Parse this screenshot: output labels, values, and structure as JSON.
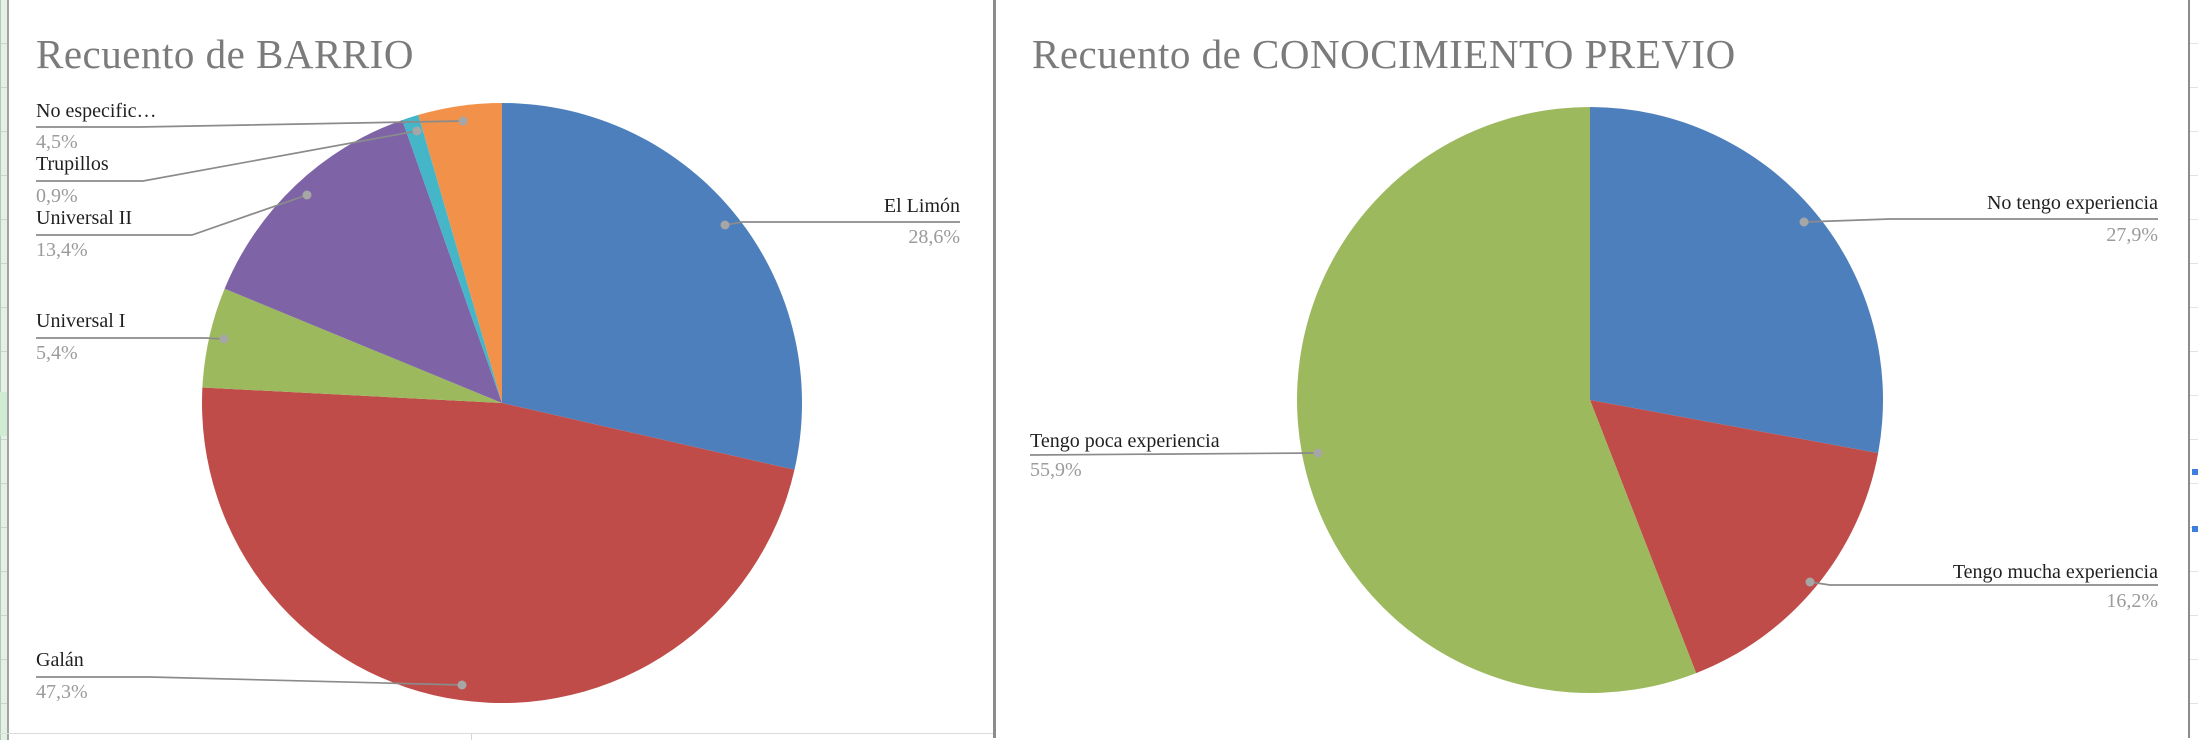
{
  "page": {
    "background": "#ffffff"
  },
  "spreadsheet": {
    "left_strip_color": "#e2f1e3",
    "grid_line_color": "#c6dbc7",
    "divider_color": "#8c8c8c",
    "selection_handle_color": "#3d7ede"
  },
  "callout_style": {
    "line_color": "#8b8b8b",
    "dot_color": "#a6a6a6",
    "label_color": "#1f1f1f",
    "pct_color": "#9b9b9b",
    "title_color": "#7b7b7b"
  },
  "chart_data": [
    {
      "type": "pie",
      "title": "Recuento de BARRIO",
      "legend": "callout-labels",
      "start_angle_deg": 0,
      "direction": "clockwise",
      "slices": [
        {
          "label": "El Limón",
          "value": 28.6,
          "pct": "28,6%",
          "color": "#4d7fbc"
        },
        {
          "label": "Galán",
          "value": 47.3,
          "pct": "47,3%",
          "color": "#c04c49"
        },
        {
          "label": "Universal I",
          "value": 5.4,
          "pct": "5,4%",
          "color": "#9cb95e"
        },
        {
          "label": "Universal II",
          "value": 13.4,
          "pct": "13,4%",
          "color": "#7e64a6"
        },
        {
          "label": "Trupillos",
          "value": 0.9,
          "pct": "0,9%",
          "color": "#45b5c8"
        },
        {
          "label": "No especific…",
          "value": 4.5,
          "pct": "4,5%",
          "color": "#f2924a"
        }
      ]
    },
    {
      "type": "pie",
      "title": "Recuento de CONOCIMIENTO PREVIO",
      "legend": "callout-labels",
      "start_angle_deg": 0,
      "direction": "clockwise",
      "slices": [
        {
          "label": "No tengo experiencia",
          "value": 27.9,
          "pct": "27,9%",
          "color": "#4d7fbc"
        },
        {
          "label": "Tengo mucha experiencia",
          "value": 16.2,
          "pct": "16,2%",
          "color": "#c04c49"
        },
        {
          "label": "Tengo poca experiencia",
          "value": 55.9,
          "pct": "55,9%",
          "color": "#9cb95e"
        }
      ]
    }
  ]
}
